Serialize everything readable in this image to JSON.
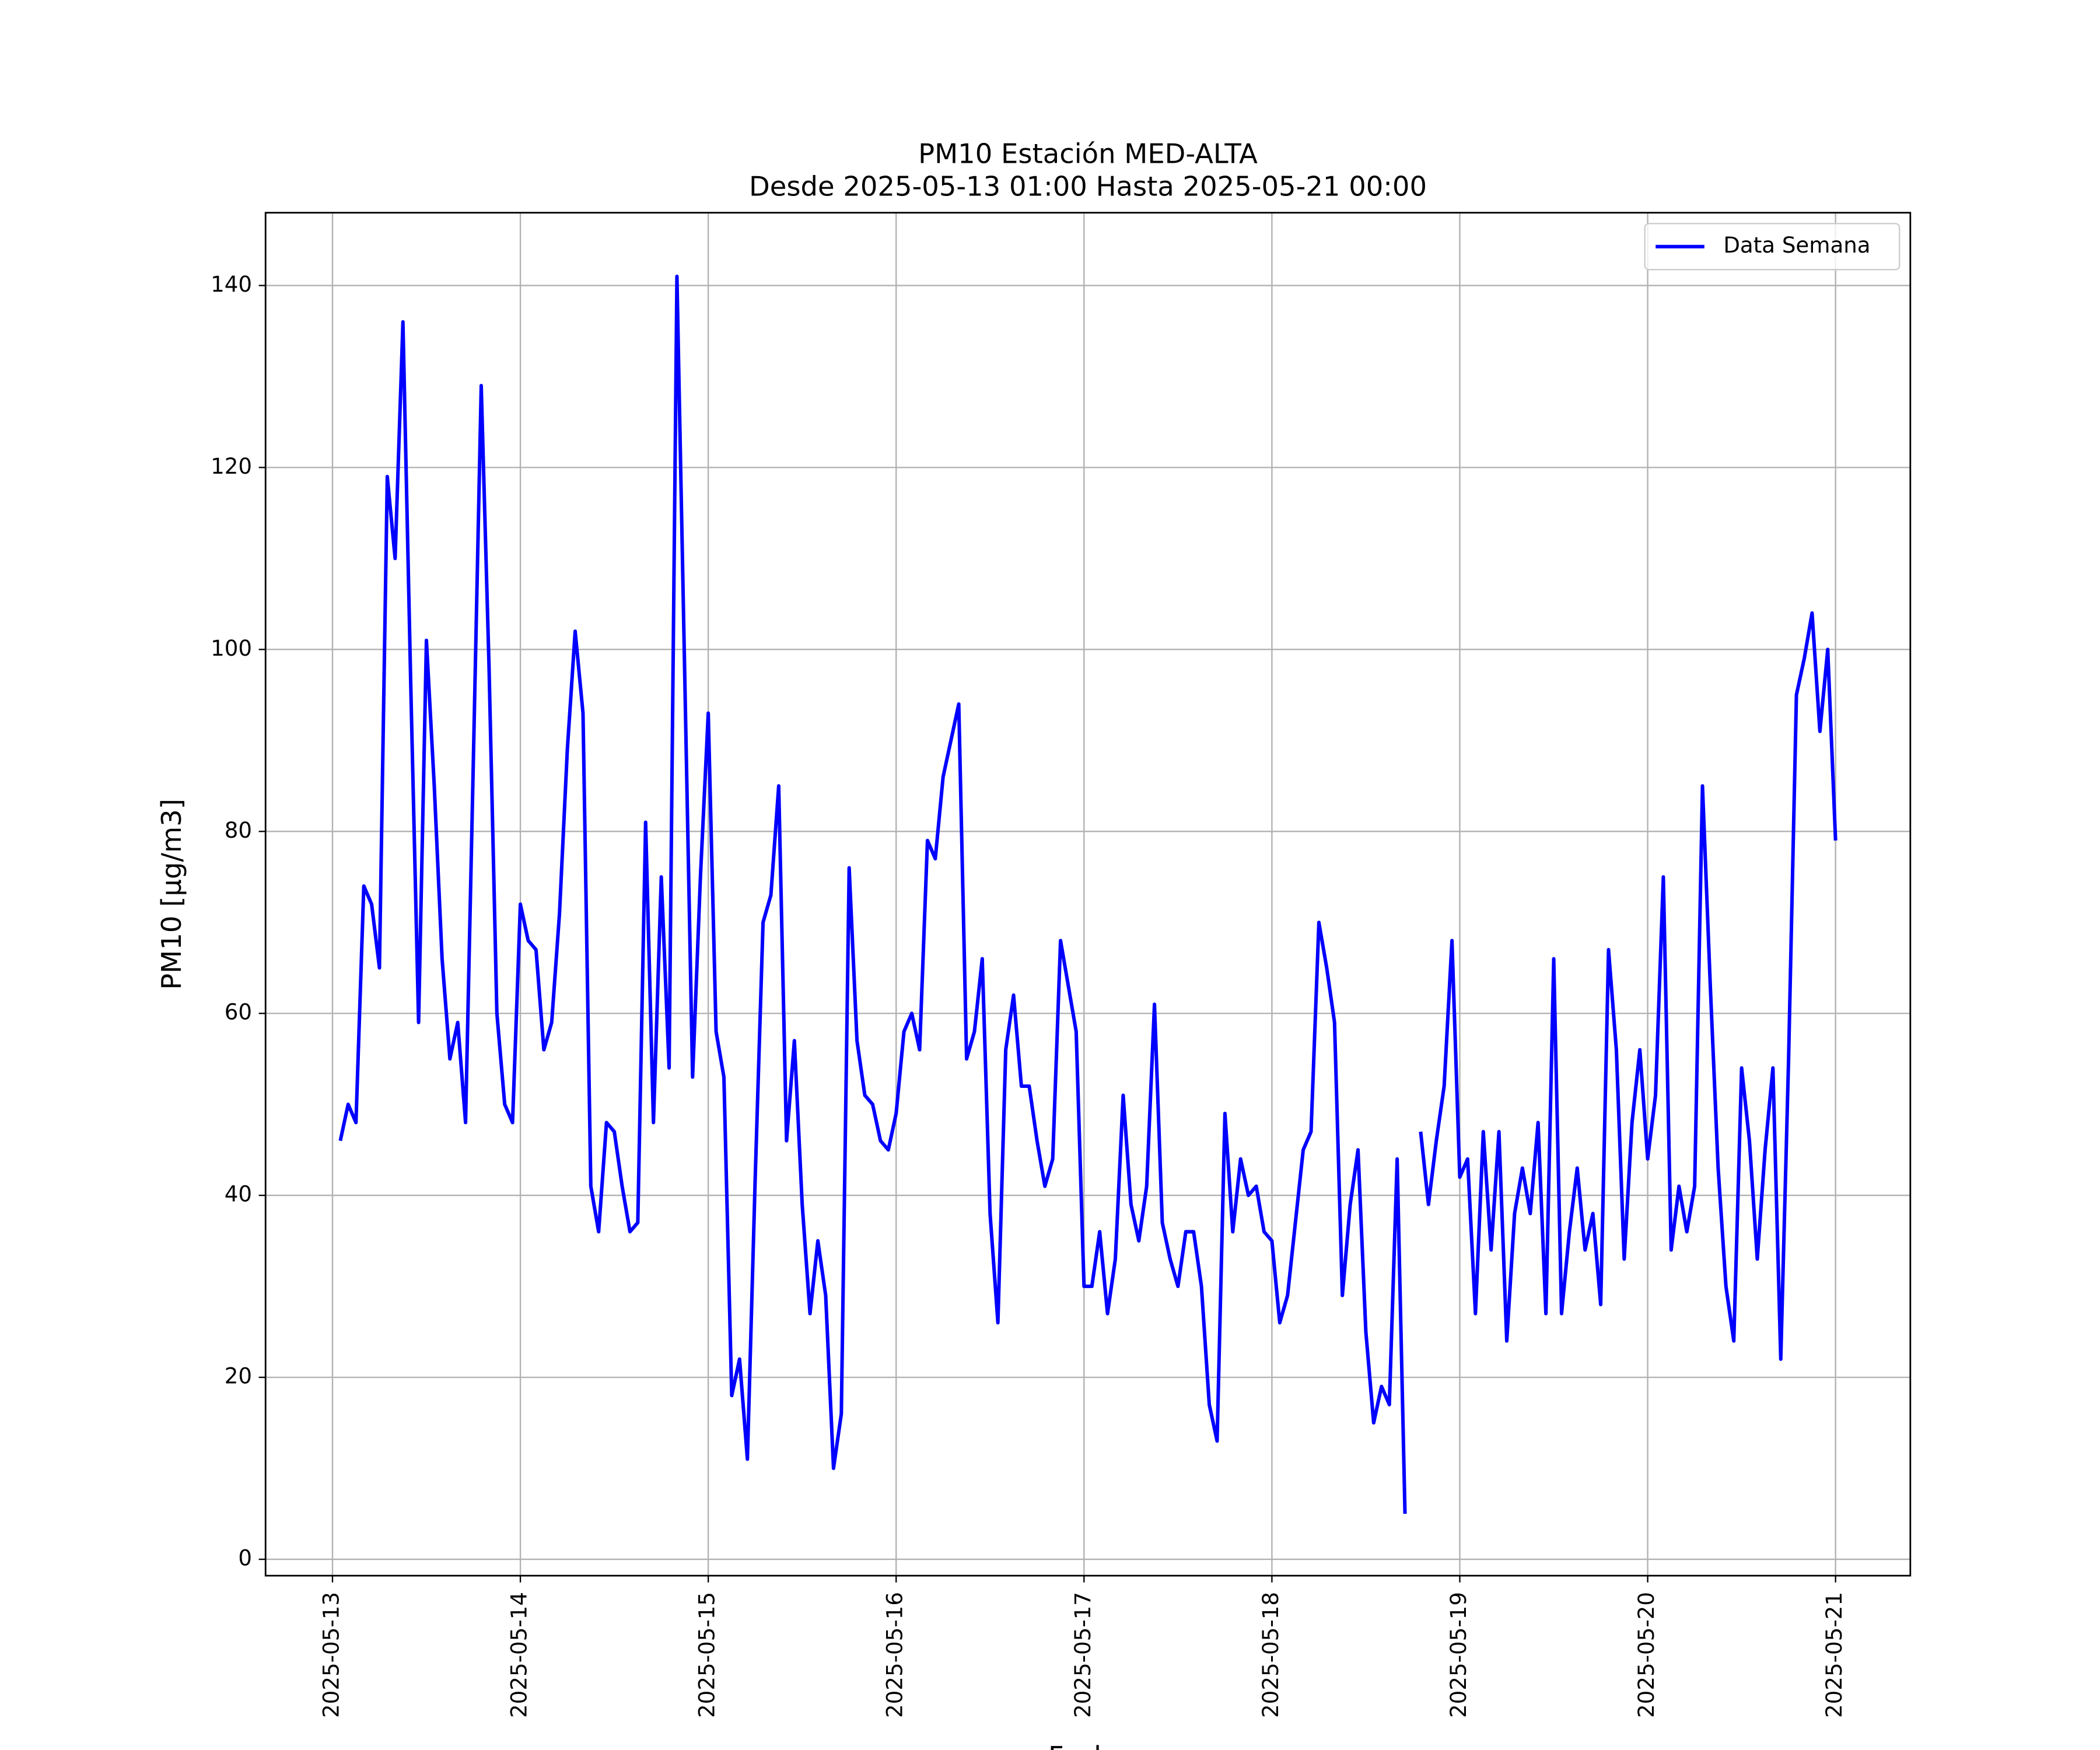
{
  "chart_data": {
    "type": "line",
    "title": "PM10 Estación MED-ALTA",
    "subtitle": "Desde 2025-05-13 01:00 Hasta 2025-05-21 00:00",
    "xlabel": "Fecha",
    "ylabel": "PM10 [μg/m3]",
    "grid": true,
    "legend": "upper right",
    "xlim": [
      "2025-05-12 15:27",
      "2025-05-21 09:33"
    ],
    "ylim": [
      -1.8,
      148.0
    ],
    "xticks": [
      {
        "value": "2025-05-13 00:00",
        "label": "2025-05-13"
      },
      {
        "value": "2025-05-14 00:00",
        "label": "2025-05-14"
      },
      {
        "value": "2025-05-15 00:00",
        "label": "2025-05-15"
      },
      {
        "value": "2025-05-16 00:00",
        "label": "2025-05-16"
      },
      {
        "value": "2025-05-17 00:00",
        "label": "2025-05-17"
      },
      {
        "value": "2025-05-18 00:00",
        "label": "2025-05-18"
      },
      {
        "value": "2025-05-19 00:00",
        "label": "2025-05-19"
      },
      {
        "value": "2025-05-20 00:00",
        "label": "2025-05-20"
      },
      {
        "value": "2025-05-21 00:00",
        "label": "2025-05-21"
      }
    ],
    "yticks": [
      0,
      20,
      40,
      60,
      80,
      100,
      120,
      140
    ],
    "x": [
      "2025-05-13 01:00",
      "2025-05-13 02:00",
      "2025-05-13 03:00",
      "2025-05-13 04:00",
      "2025-05-13 05:00",
      "2025-05-13 06:00",
      "2025-05-13 07:00",
      "2025-05-13 08:00",
      "2025-05-13 09:00",
      "2025-05-13 10:00",
      "2025-05-13 11:00",
      "2025-05-13 12:00",
      "2025-05-13 13:00",
      "2025-05-13 14:00",
      "2025-05-13 15:00",
      "2025-05-13 16:00",
      "2025-05-13 17:00",
      "2025-05-13 18:00",
      "2025-05-13 19:00",
      "2025-05-13 20:00",
      "2025-05-13 21:00",
      "2025-05-13 22:00",
      "2025-05-13 23:00",
      "2025-05-14 00:00",
      "2025-05-14 01:00",
      "2025-05-14 02:00",
      "2025-05-14 03:00",
      "2025-05-14 04:00",
      "2025-05-14 05:00",
      "2025-05-14 06:00",
      "2025-05-14 07:00",
      "2025-05-14 08:00",
      "2025-05-14 09:00",
      "2025-05-14 10:00",
      "2025-05-14 11:00",
      "2025-05-14 12:00",
      "2025-05-14 13:00",
      "2025-05-14 14:00",
      "2025-05-14 15:00",
      "2025-05-14 16:00",
      "2025-05-14 17:00",
      "2025-05-14 18:00",
      "2025-05-14 19:00",
      "2025-05-14 20:00",
      "2025-05-14 21:00",
      "2025-05-14 22:00",
      "2025-05-14 23:00",
      "2025-05-15 00:00",
      "2025-05-15 01:00",
      "2025-05-15 02:00",
      "2025-05-15 03:00",
      "2025-05-15 04:00",
      "2025-05-15 05:00",
      "2025-05-15 06:00",
      "2025-05-15 07:00",
      "2025-05-15 08:00",
      "2025-05-15 09:00",
      "2025-05-15 10:00",
      "2025-05-15 11:00",
      "2025-05-15 12:00",
      "2025-05-15 13:00",
      "2025-05-15 14:00",
      "2025-05-15 15:00",
      "2025-05-15 16:00",
      "2025-05-15 17:00",
      "2025-05-15 18:00",
      "2025-05-15 19:00",
      "2025-05-15 20:00",
      "2025-05-15 21:00",
      "2025-05-15 22:00",
      "2025-05-15 23:00",
      "2025-05-16 00:00",
      "2025-05-16 01:00",
      "2025-05-16 02:00",
      "2025-05-16 03:00",
      "2025-05-16 04:00",
      "2025-05-16 05:00",
      "2025-05-16 06:00",
      "2025-05-16 07:00",
      "2025-05-16 08:00",
      "2025-05-16 09:00",
      "2025-05-16 10:00",
      "2025-05-16 11:00",
      "2025-05-16 12:00",
      "2025-05-16 13:00",
      "2025-05-16 14:00",
      "2025-05-16 15:00",
      "2025-05-16 16:00",
      "2025-05-16 17:00",
      "2025-05-16 18:00",
      "2025-05-16 19:00",
      "2025-05-16 20:00",
      "2025-05-16 21:00",
      "2025-05-16 22:00",
      "2025-05-16 23:00",
      "2025-05-17 00:00",
      "2025-05-17 01:00",
      "2025-05-17 02:00",
      "2025-05-17 03:00",
      "2025-05-17 04:00",
      "2025-05-17 05:00",
      "2025-05-17 06:00",
      "2025-05-17 07:00",
      "2025-05-17 08:00",
      "2025-05-17 09:00",
      "2025-05-17 10:00",
      "2025-05-17 11:00",
      "2025-05-17 12:00",
      "2025-05-17 13:00",
      "2025-05-17 14:00",
      "2025-05-17 15:00",
      "2025-05-17 16:00",
      "2025-05-17 17:00",
      "2025-05-17 18:00",
      "2025-05-17 19:00",
      "2025-05-17 20:00",
      "2025-05-17 21:00",
      "2025-05-17 22:00",
      "2025-05-17 23:00",
      "2025-05-18 00:00",
      "2025-05-18 01:00",
      "2025-05-18 02:00",
      "2025-05-18 03:00",
      "2025-05-18 04:00",
      "2025-05-18 05:00",
      "2025-05-18 06:00",
      "2025-05-18 07:00",
      "2025-05-18 08:00",
      "2025-05-18 09:00",
      "2025-05-18 10:00",
      "2025-05-18 11:00",
      "2025-05-18 12:00",
      "2025-05-18 13:00",
      "2025-05-18 14:00",
      "2025-05-18 15:00",
      "2025-05-18 16:00",
      "2025-05-18 17:00",
      "2025-05-18 18:00",
      "2025-05-18 19:00",
      "2025-05-18 20:00",
      "2025-05-18 21:00",
      "2025-05-18 22:00",
      "2025-05-18 23:00",
      "2025-05-19 00:00",
      "2025-05-19 01:00",
      "2025-05-19 02:00",
      "2025-05-19 03:00",
      "2025-05-19 04:00",
      "2025-05-19 05:00",
      "2025-05-19 06:00",
      "2025-05-19 07:00",
      "2025-05-19 08:00",
      "2025-05-19 09:00",
      "2025-05-19 10:00",
      "2025-05-19 11:00",
      "2025-05-19 12:00",
      "2025-05-19 13:00",
      "2025-05-19 14:00",
      "2025-05-19 15:00",
      "2025-05-19 16:00",
      "2025-05-19 17:00",
      "2025-05-19 18:00",
      "2025-05-19 19:00",
      "2025-05-19 20:00",
      "2025-05-19 21:00",
      "2025-05-19 22:00",
      "2025-05-19 23:00",
      "2025-05-20 00:00",
      "2025-05-20 01:00",
      "2025-05-20 02:00",
      "2025-05-20 03:00",
      "2025-05-20 04:00",
      "2025-05-20 05:00",
      "2025-05-20 06:00",
      "2025-05-20 07:00",
      "2025-05-20 08:00",
      "2025-05-20 09:00",
      "2025-05-20 10:00",
      "2025-05-20 11:00",
      "2025-05-20 12:00",
      "2025-05-20 13:00",
      "2025-05-20 14:00",
      "2025-05-20 15:00",
      "2025-05-20 16:00",
      "2025-05-20 17:00",
      "2025-05-20 18:00",
      "2025-05-20 19:00",
      "2025-05-20 20:00",
      "2025-05-20 21:00",
      "2025-05-20 22:00",
      "2025-05-20 23:00",
      "2025-05-21 00:00"
    ],
    "series": [
      {
        "name": "Data Semana",
        "color": "#0000ff",
        "values": [
          46,
          50,
          48,
          74,
          72,
          65,
          119,
          110,
          136,
          96,
          59,
          101,
          85,
          66,
          55,
          59,
          48,
          88,
          129,
          98,
          60,
          50,
          48,
          72,
          68,
          67,
          56,
          59,
          71,
          89,
          102,
          93,
          41,
          36,
          48,
          47,
          41,
          36,
          37,
          81,
          48,
          75,
          54,
          141,
          97,
          53,
          75,
          93,
          58,
          53,
          18,
          22,
          11,
          42,
          70,
          73,
          85,
          46,
          57,
          39,
          27,
          35,
          29,
          10,
          16,
          76,
          57,
          51,
          50,
          46,
          45,
          49,
          58,
          60,
          56,
          79,
          77,
          86,
          90,
          94,
          55,
          58,
          66,
          38,
          26,
          56,
          62,
          52,
          52,
          46,
          41,
          44,
          68,
          63,
          58,
          30,
          30,
          36,
          27,
          33,
          51,
          39,
          35,
          41,
          61,
          37,
          33,
          30,
          36,
          36,
          30,
          17,
          13,
          49,
          36,
          44,
          40,
          41,
          36,
          35,
          26,
          29,
          37,
          45,
          47,
          70,
          65,
          59,
          29,
          39,
          45,
          25,
          15,
          19,
          17,
          44,
          5,
          null,
          47,
          39,
          46,
          52,
          68,
          42,
          44,
          27,
          47,
          34,
          47,
          24,
          38,
          43,
          38,
          48,
          27,
          66,
          27,
          36,
          43,
          34,
          38,
          28,
          67,
          56,
          33,
          48,
          56,
          44,
          51,
          75,
          34,
          41,
          36,
          41,
          85,
          63,
          43,
          30,
          24,
          54,
          46,
          33,
          45,
          54,
          22,
          55,
          95,
          99,
          104,
          91,
          100,
          79
        ]
      }
    ]
  }
}
